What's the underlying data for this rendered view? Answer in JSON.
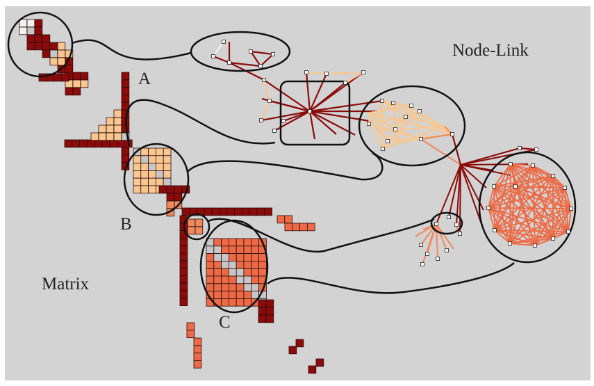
{
  "labels": {
    "node_link": "Node-Link",
    "matrix": "Matrix",
    "a": "A",
    "b": "B",
    "c": "C"
  },
  "colors": {
    "background": "#d3d3d3",
    "dark_red": "#8b0a0a",
    "peach": "#f9c78f",
    "salmon": "#ef8a5f",
    "coral": "#ec6a45",
    "pale": "#f2f2f2",
    "diagonal_gray": "#c7c7c7"
  }
}
